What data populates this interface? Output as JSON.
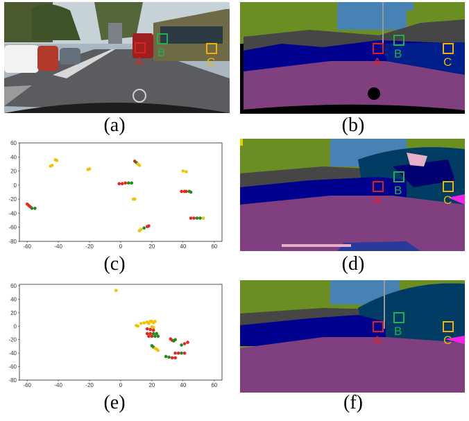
{
  "captions": [
    "(a)",
    "(b)",
    "(c)",
    "(d)",
    "(e)",
    "(f)"
  ],
  "markers": [
    {
      "label": "A",
      "color": "#e02020"
    },
    {
      "label": "B",
      "color": "#20b050"
    },
    {
      "label": "C",
      "color": "#f0b400"
    }
  ],
  "colors": {
    "road": "#804080",
    "vegetation": "#6b8e23",
    "sky": "#4682b4",
    "car": "#00008e",
    "bus": "#003c64",
    "building": "#464646",
    "sidewalk": "#f423e8",
    "pole": "#999999",
    "void": "#000000"
  },
  "chart_data": [
    {
      "type": "scatter",
      "panel": "(c)",
      "xticks": [
        "-60",
        "-40",
        "-20",
        "0",
        "20",
        "40",
        "60"
      ],
      "yticks": [
        "60",
        "40",
        "20",
        "0",
        "-20",
        "-40",
        "-60",
        "-80"
      ],
      "xlim": [
        -65,
        65
      ],
      "ylim": [
        -80,
        60
      ],
      "series_colors": {
        "red": "#e8261c",
        "green": "#1e8c1e",
        "yellow": "#f2c200"
      },
      "points": [
        {
          "x": -60,
          "y": -27,
          "c": "red"
        },
        {
          "x": -59,
          "y": -29,
          "c": "red"
        },
        {
          "x": -58,
          "y": -31,
          "c": "red"
        },
        {
          "x": -57,
          "y": -33,
          "c": "green"
        },
        {
          "x": -55,
          "y": -33,
          "c": "green"
        },
        {
          "x": -45,
          "y": 27,
          "c": "yellow"
        },
        {
          "x": -44,
          "y": 28,
          "c": "yellow"
        },
        {
          "x": -42,
          "y": 36,
          "c": "yellow"
        },
        {
          "x": -41,
          "y": 35,
          "c": "yellow"
        },
        {
          "x": -21,
          "y": 22,
          "c": "yellow"
        },
        {
          "x": -20,
          "y": 23,
          "c": "yellow"
        },
        {
          "x": -1,
          "y": 2,
          "c": "red"
        },
        {
          "x": 1,
          "y": 2,
          "c": "red"
        },
        {
          "x": 3,
          "y": 3,
          "c": "red"
        },
        {
          "x": 5,
          "y": 3,
          "c": "green"
        },
        {
          "x": 7,
          "y": 3,
          "c": "green"
        },
        {
          "x": 8,
          "y": -20,
          "c": "yellow"
        },
        {
          "x": 9,
          "y": -20,
          "c": "yellow"
        },
        {
          "x": 9,
          "y": 34,
          "c": "red"
        },
        {
          "x": 10,
          "y": 32,
          "c": "green"
        },
        {
          "x": 11,
          "y": 30,
          "c": "yellow"
        },
        {
          "x": 12,
          "y": 28,
          "c": "yellow"
        },
        {
          "x": 12,
          "y": -65,
          "c": "yellow"
        },
        {
          "x": 13,
          "y": -63,
          "c": "yellow"
        },
        {
          "x": 15,
          "y": -61,
          "c": "green"
        },
        {
          "x": 17,
          "y": -59,
          "c": "red"
        },
        {
          "x": 18,
          "y": -58,
          "c": "red"
        },
        {
          "x": 39,
          "y": -9,
          "c": "red"
        },
        {
          "x": 41,
          "y": -9,
          "c": "red"
        },
        {
          "x": 42,
          "y": -9,
          "c": "red"
        },
        {
          "x": 44,
          "y": -9,
          "c": "green"
        },
        {
          "x": 45,
          "y": -10,
          "c": "green"
        },
        {
          "x": 40,
          "y": 20,
          "c": "yellow"
        },
        {
          "x": 42,
          "y": 19,
          "c": "yellow"
        },
        {
          "x": 45,
          "y": -47,
          "c": "red"
        },
        {
          "x": 47,
          "y": -47,
          "c": "red"
        },
        {
          "x": 49,
          "y": -47,
          "c": "green"
        },
        {
          "x": 51,
          "y": -47,
          "c": "green"
        },
        {
          "x": 53,
          "y": -47,
          "c": "yellow"
        }
      ]
    },
    {
      "type": "scatter",
      "panel": "(e)",
      "xticks": [
        "-60",
        "-40",
        "-20",
        "0",
        "20",
        "40",
        "60"
      ],
      "yticks": [
        "60",
        "40",
        "20",
        "0",
        "-20",
        "-40",
        "-60",
        "-80"
      ],
      "xlim": [
        -65,
        65
      ],
      "ylim": [
        -80,
        62
      ],
      "series_colors": {
        "red": "#e8261c",
        "green": "#1e8c1e",
        "yellow": "#f2c200"
      },
      "points": [
        {
          "x": -3,
          "y": 53,
          "c": "yellow"
        },
        {
          "x": 10,
          "y": 1,
          "c": "yellow"
        },
        {
          "x": 11,
          "y": 0,
          "c": "yellow"
        },
        {
          "x": 13,
          "y": 4,
          "c": "yellow"
        },
        {
          "x": 15,
          "y": 5,
          "c": "yellow"
        },
        {
          "x": 17,
          "y": 6,
          "c": "yellow"
        },
        {
          "x": 18,
          "y": 4,
          "c": "yellow"
        },
        {
          "x": 19,
          "y": 7,
          "c": "yellow"
        },
        {
          "x": 20,
          "y": 7,
          "c": "yellow"
        },
        {
          "x": 21,
          "y": 5,
          "c": "yellow"
        },
        {
          "x": 22,
          "y": 7,
          "c": "yellow"
        },
        {
          "x": 20,
          "y": -1,
          "c": "yellow"
        },
        {
          "x": 21,
          "y": -2,
          "c": "yellow"
        },
        {
          "x": 17,
          "y": -4,
          "c": "red"
        },
        {
          "x": 19,
          "y": -5,
          "c": "red"
        },
        {
          "x": 21,
          "y": -6,
          "c": "red"
        },
        {
          "x": 17,
          "y": -11,
          "c": "red"
        },
        {
          "x": 19,
          "y": -11,
          "c": "red"
        },
        {
          "x": 21,
          "y": -11,
          "c": "green"
        },
        {
          "x": 23,
          "y": -11,
          "c": "green"
        },
        {
          "x": 18,
          "y": -15,
          "c": "red"
        },
        {
          "x": 20,
          "y": -15,
          "c": "red"
        },
        {
          "x": 22,
          "y": -15,
          "c": "green"
        },
        {
          "x": 24,
          "y": -15,
          "c": "green"
        },
        {
          "x": 20,
          "y": -29,
          "c": "green"
        },
        {
          "x": 21,
          "y": -31,
          "c": "green"
        },
        {
          "x": 22,
          "y": -33,
          "c": "yellow"
        },
        {
          "x": 23,
          "y": -34,
          "c": "yellow"
        },
        {
          "x": 24,
          "y": -36,
          "c": "yellow"
        },
        {
          "x": 32,
          "y": -19,
          "c": "red"
        },
        {
          "x": 33,
          "y": -21,
          "c": "red"
        },
        {
          "x": 34,
          "y": -22,
          "c": "green"
        },
        {
          "x": 35,
          "y": -20,
          "c": "green"
        },
        {
          "x": 39,
          "y": -28,
          "c": "green"
        },
        {
          "x": 41,
          "y": -26,
          "c": "red"
        },
        {
          "x": 43,
          "y": -24,
          "c": "red"
        },
        {
          "x": 35,
          "y": -40,
          "c": "red"
        },
        {
          "x": 37,
          "y": -40,
          "c": "red"
        },
        {
          "x": 39,
          "y": -40,
          "c": "green"
        },
        {
          "x": 41,
          "y": -40,
          "c": "red"
        },
        {
          "x": 29,
          "y": -45,
          "c": "green"
        },
        {
          "x": 31,
          "y": -46,
          "c": "green"
        },
        {
          "x": 33,
          "y": -47,
          "c": "red"
        },
        {
          "x": 35,
          "y": -47,
          "c": "red"
        }
      ]
    }
  ]
}
